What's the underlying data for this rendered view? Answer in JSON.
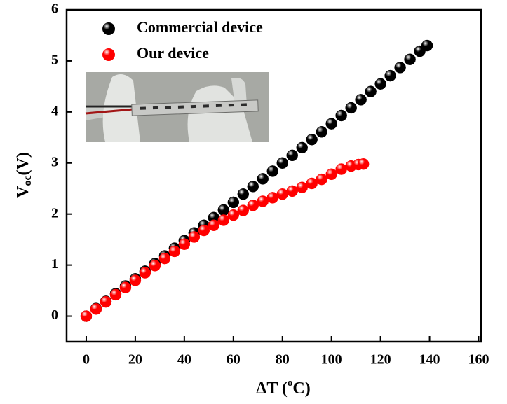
{
  "chart_data": {
    "type": "scatter",
    "xlabel": [
      "ΔT (",
      "o",
      "C)"
    ],
    "ylabel": [
      "V",
      "oc",
      "(V)"
    ],
    "xlim": [
      -8,
      161
    ],
    "ylim": [
      -0.5,
      6
    ],
    "xticks": [
      0,
      20,
      40,
      60,
      80,
      100,
      120,
      140,
      160
    ],
    "yticks": [
      0,
      1,
      2,
      3,
      4,
      5,
      6
    ],
    "series": [
      {
        "name": "Commercial device",
        "color": "#000000",
        "x": [
          0,
          4,
          8,
          12,
          16,
          20,
          24,
          28,
          32,
          36,
          40,
          44,
          48,
          52,
          56,
          60,
          64,
          68,
          72,
          76,
          80,
          84,
          88,
          92,
          96,
          100,
          104,
          108,
          112,
          116,
          120,
          124,
          128,
          132,
          136,
          139
        ],
        "values": [
          0,
          0.15,
          0.29,
          0.44,
          0.59,
          0.73,
          0.88,
          1.03,
          1.18,
          1.33,
          1.48,
          1.63,
          1.78,
          1.93,
          2.08,
          2.23,
          2.39,
          2.54,
          2.69,
          2.84,
          3.0,
          3.15,
          3.3,
          3.46,
          3.61,
          3.77,
          3.93,
          4.08,
          4.24,
          4.4,
          4.55,
          4.71,
          4.87,
          5.03,
          5.19,
          5.3
        ]
      },
      {
        "name": "Our device",
        "color": "#ff0000",
        "x": [
          0,
          4,
          8,
          12,
          16,
          20,
          24,
          28,
          32,
          36,
          40,
          44,
          48,
          52,
          56,
          60,
          64,
          68,
          72,
          76,
          80,
          84,
          88,
          92,
          96,
          100,
          104,
          108,
          111,
          113
        ],
        "values": [
          0,
          0.14,
          0.28,
          0.42,
          0.56,
          0.7,
          0.85,
          0.99,
          1.13,
          1.27,
          1.41,
          1.55,
          1.68,
          1.78,
          1.88,
          1.98,
          2.07,
          2.17,
          2.25,
          2.32,
          2.39,
          2.45,
          2.52,
          2.6,
          2.68,
          2.78,
          2.88,
          2.94,
          2.97,
          2.98
        ]
      }
    ]
  }
}
